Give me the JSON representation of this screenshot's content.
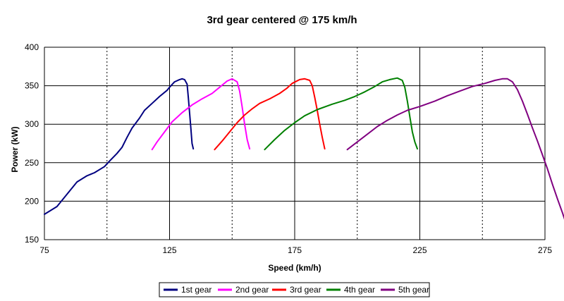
{
  "chart_data": {
    "type": "line",
    "title": "3rd gear centered @ 175 km/h",
    "xlabel": "Speed (km/h)",
    "ylabel": "Power (kW)",
    "xlim": [
      75,
      275
    ],
    "ylim": [
      150,
      400
    ],
    "xticks": [
      "75",
      "125",
      "175",
      "225",
      "275"
    ],
    "yticks": [
      "150",
      "200",
      "250",
      "300",
      "350",
      "400"
    ],
    "grid": "major solid, minor dotted vertical at 100/150/200/250",
    "legend_position": "bottom",
    "series": [
      {
        "name": "1st gear",
        "color": "#000080",
        "points": [
          [
            75,
            183
          ],
          [
            80,
            193
          ],
          [
            85,
            213
          ],
          [
            88,
            225
          ],
          [
            92,
            233
          ],
          [
            95,
            237
          ],
          [
            99,
            245
          ],
          [
            101,
            252
          ],
          [
            104,
            262
          ],
          [
            106,
            270
          ],
          [
            108,
            283
          ],
          [
            110,
            295
          ],
          [
            113,
            308
          ],
          [
            115,
            318
          ],
          [
            118,
            327
          ],
          [
            121,
            336
          ],
          [
            124,
            344
          ],
          [
            125,
            348
          ],
          [
            127,
            355
          ],
          [
            129,
            358
          ],
          [
            130,
            359
          ],
          [
            131,
            358
          ],
          [
            132,
            352
          ],
          [
            132.5,
            335
          ],
          [
            133,
            315
          ],
          [
            133.5,
            295
          ],
          [
            134,
            275
          ],
          [
            134.5,
            268
          ]
        ]
      },
      {
        "name": "2nd gear",
        "color": "#FF00FF",
        "points": [
          [
            118,
            267
          ],
          [
            120,
            277
          ],
          [
            123,
            290
          ],
          [
            126,
            303
          ],
          [
            130,
            315
          ],
          [
            134,
            325
          ],
          [
            138,
            333
          ],
          [
            142,
            340
          ],
          [
            145,
            348
          ],
          [
            148,
            356
          ],
          [
            150,
            359
          ],
          [
            152,
            355
          ],
          [
            153,
            343
          ],
          [
            154,
            323
          ],
          [
            155,
            300
          ],
          [
            156,
            280
          ],
          [
            157,
            268
          ]
        ]
      },
      {
        "name": "3rd gear",
        "color": "#FF0000",
        "points": [
          [
            143,
            267
          ],
          [
            146,
            278
          ],
          [
            149,
            290
          ],
          [
            152,
            302
          ],
          [
            155,
            312
          ],
          [
            158,
            320
          ],
          [
            161,
            327
          ],
          [
            165,
            333
          ],
          [
            169,
            340
          ],
          [
            172,
            347
          ],
          [
            174,
            353
          ],
          [
            177,
            358
          ],
          [
            179,
            359
          ],
          [
            181,
            357
          ],
          [
            182,
            350
          ],
          [
            183,
            335
          ],
          [
            184,
            318
          ],
          [
            185,
            300
          ],
          [
            186,
            283
          ],
          [
            187,
            268
          ]
        ]
      },
      {
        "name": "4th gear",
        "color": "#008000",
        "points": [
          [
            163,
            267
          ],
          [
            167,
            280
          ],
          [
            171,
            292
          ],
          [
            175,
            302
          ],
          [
            179,
            311
          ],
          [
            184,
            319
          ],
          [
            190,
            326
          ],
          [
            195,
            331
          ],
          [
            199,
            336
          ],
          [
            203,
            342
          ],
          [
            207,
            349
          ],
          [
            210,
            355
          ],
          [
            213,
            358
          ],
          [
            216,
            360
          ],
          [
            218,
            357
          ],
          [
            219,
            348
          ],
          [
            220,
            330
          ],
          [
            221,
            310
          ],
          [
            222,
            290
          ],
          [
            223,
            277
          ],
          [
            224,
            268
          ]
        ]
      },
      {
        "name": "5th gear",
        "color": "#800080",
        "points": [
          [
            196,
            267
          ],
          [
            200,
            277
          ],
          [
            204,
            287
          ],
          [
            208,
            297
          ],
          [
            212,
            305
          ],
          [
            216,
            312
          ],
          [
            220,
            318
          ],
          [
            225,
            323
          ],
          [
            231,
            330
          ],
          [
            236,
            337
          ],
          [
            241,
            343
          ],
          [
            246,
            349
          ],
          [
            251,
            353
          ],
          [
            255,
            357
          ],
          [
            258,
            359
          ],
          [
            260,
            359
          ],
          [
            262,
            355
          ],
          [
            264,
            345
          ],
          [
            266,
            330
          ],
          [
            268,
            313
          ],
          [
            270,
            295
          ],
          [
            272,
            278
          ],
          [
            274,
            260
          ],
          [
            276,
            242
          ],
          [
            278,
            222
          ],
          [
            280,
            203
          ],
          [
            282,
            185
          ],
          [
            283,
            175
          ]
        ]
      }
    ]
  }
}
